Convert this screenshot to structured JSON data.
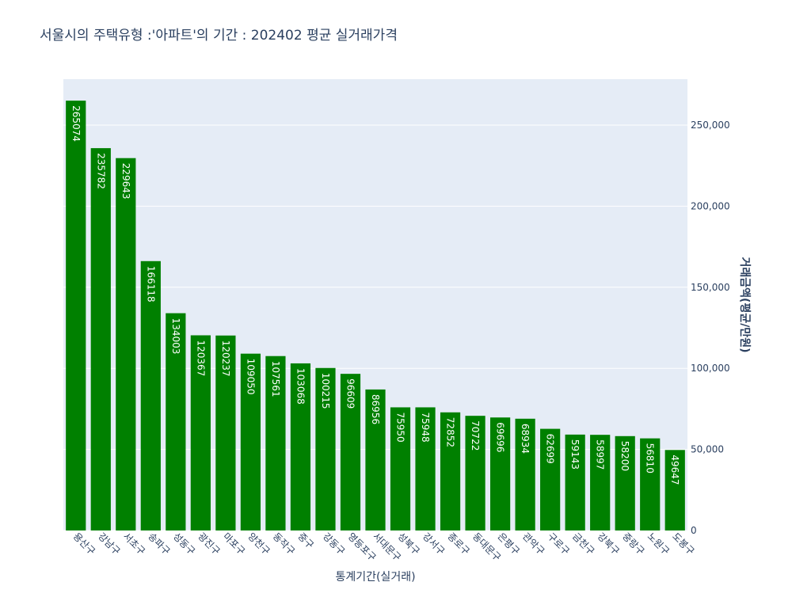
{
  "chart_data": {
    "type": "bar",
    "title": "서울시의 주택유형 :'아파트'의 기간 : 202402 평균 실거래가격",
    "x_label": "통계기간(실거래)",
    "y_label": "거래금액(평균/만원)",
    "categories": [
      "용산구",
      "강남구",
      "서초구",
      "송파구",
      "성동구",
      "광진구",
      "마포구",
      "양천구",
      "동작구",
      "중구",
      "강동구",
      "영등포구",
      "서대문구",
      "성북구",
      "강서구",
      "종로구",
      "동대문구",
      "은평구",
      "관악구",
      "구로구",
      "금천구",
      "강북구",
      "중랑구",
      "노원구",
      "도봉구"
    ],
    "values": [
      265074,
      235782,
      229643,
      166118,
      134003,
      120367,
      120237,
      109050,
      107561,
      103068,
      100215,
      96609,
      86956,
      75950,
      75948,
      72852,
      70722,
      69696,
      68934,
      62699,
      59143,
      58997,
      58200,
      56810,
      49647
    ],
    "color": "#008000",
    "ylim": [
      0,
      278320
    ],
    "yticks": [
      0,
      {
        "value": 50000,
        "label": "50,000"
      },
      {
        "value": 100000,
        "label": "100,000"
      },
      {
        "value": 150000,
        "label": "150,000"
      },
      {
        "value": 200000,
        "label": "200,000"
      },
      {
        "value": 250000,
        "label": "250,000"
      }
    ],
    "y_axis_side": "right",
    "grid": true
  }
}
